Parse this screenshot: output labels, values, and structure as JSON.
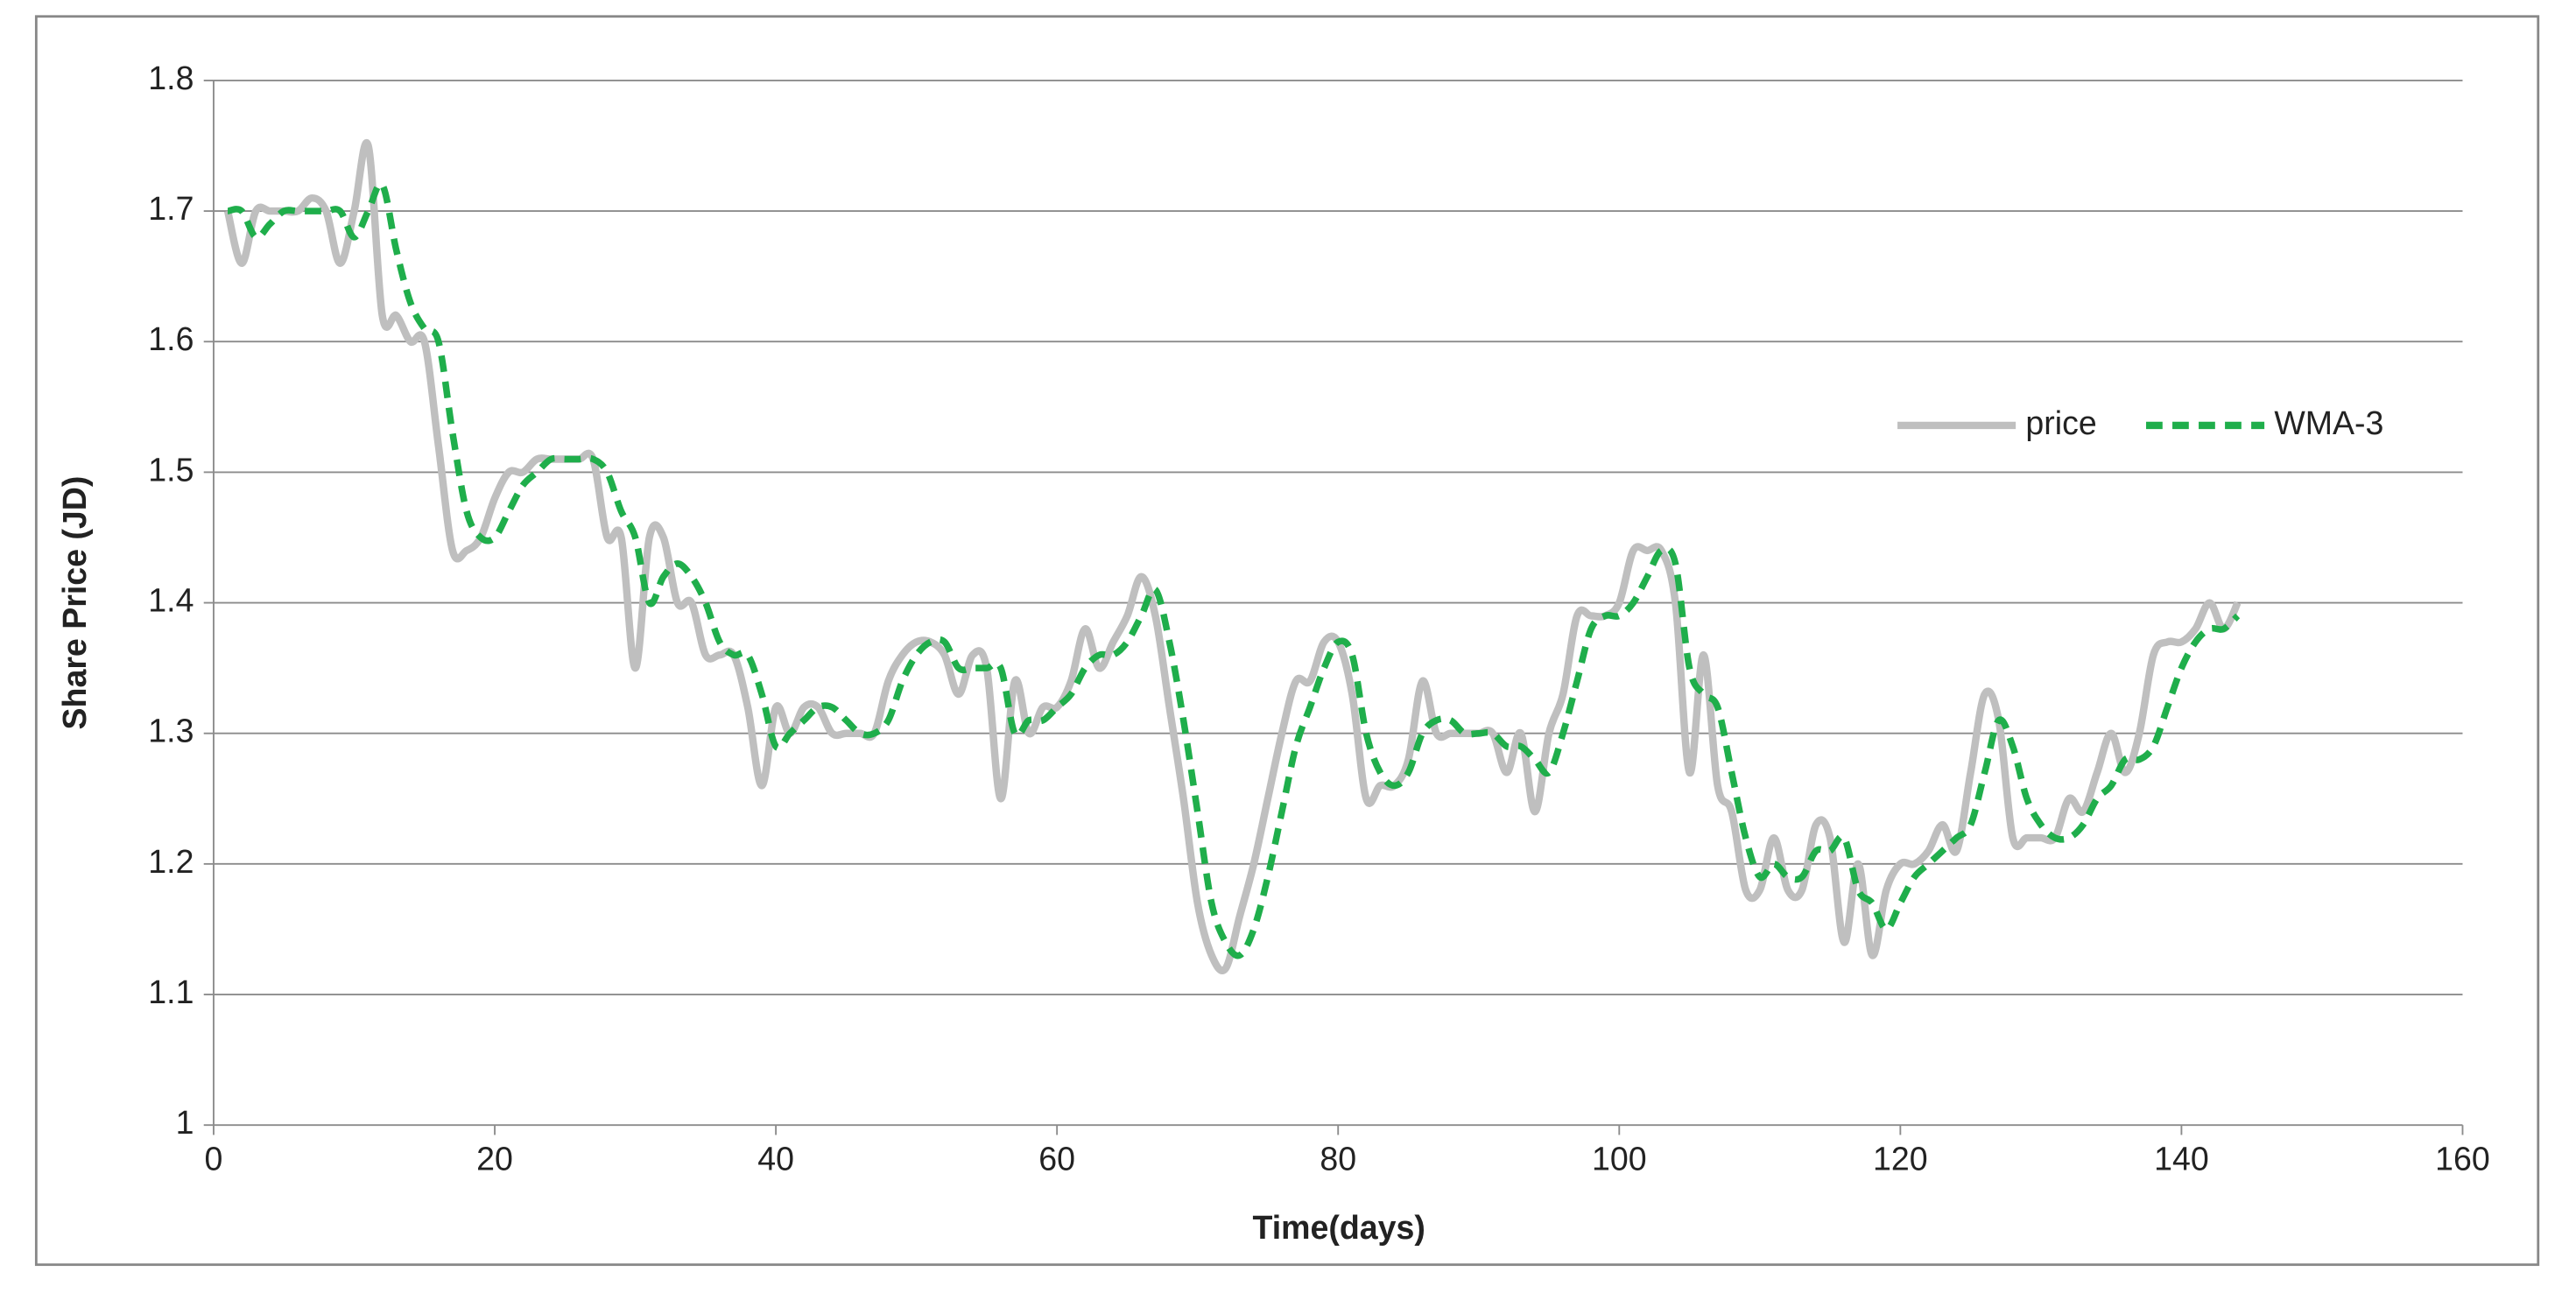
{
  "chart_data": {
    "type": "line",
    "xlabel": "Time(days)",
    "ylabel": "Share Price (JD)",
    "x": [
      1,
      2,
      3,
      4,
      5,
      6,
      7,
      8,
      9,
      10,
      11,
      12,
      13,
      14,
      15,
      16,
      17,
      18,
      19,
      20,
      21,
      22,
      23,
      24,
      25,
      26,
      27,
      28,
      29,
      30,
      31,
      32,
      33,
      34,
      35,
      36,
      37,
      38,
      39,
      40,
      41,
      42,
      43,
      44,
      45,
      46,
      47,
      48,
      49,
      50,
      51,
      52,
      53,
      54,
      55,
      56,
      57,
      58,
      59,
      60,
      61,
      62,
      63,
      64,
      65,
      66,
      67,
      68,
      69,
      70,
      71,
      72,
      73,
      74,
      75,
      76,
      77,
      78,
      79,
      80,
      81,
      82,
      83,
      84,
      85,
      86,
      87,
      88,
      89,
      90,
      91,
      92,
      93,
      94,
      95,
      96,
      97,
      98,
      99,
      100,
      101,
      102,
      103,
      104,
      105,
      106,
      107,
      108,
      109,
      110,
      111,
      112,
      113,
      114,
      115,
      116,
      117,
      118,
      119,
      120,
      121,
      122,
      123,
      124,
      125,
      126,
      127,
      128,
      129,
      130,
      131,
      132,
      133,
      134,
      135,
      136,
      137,
      138,
      139,
      140,
      141,
      142,
      143,
      144
    ],
    "series": [
      {
        "name": "price",
        "color": "#bfbfbf",
        "dashed": false,
        "values": [
          1.7,
          1.66,
          1.7,
          1.7,
          1.7,
          1.7,
          1.71,
          1.7,
          1.66,
          1.7,
          1.75,
          1.62,
          1.62,
          1.6,
          1.6,
          1.52,
          1.44,
          1.44,
          1.45,
          1.48,
          1.5,
          1.5,
          1.51,
          1.51,
          1.51,
          1.51,
          1.51,
          1.45,
          1.45,
          1.35,
          1.45,
          1.45,
          1.4,
          1.4,
          1.36,
          1.36,
          1.36,
          1.32,
          1.26,
          1.32,
          1.3,
          1.32,
          1.32,
          1.3,
          1.3,
          1.3,
          1.3,
          1.34,
          1.36,
          1.37,
          1.37,
          1.36,
          1.33,
          1.36,
          1.35,
          1.25,
          1.34,
          1.3,
          1.32,
          1.32,
          1.34,
          1.38,
          1.35,
          1.37,
          1.39,
          1.42,
          1.39,
          1.32,
          1.25,
          1.17,
          1.13,
          1.12,
          1.16,
          1.2,
          1.25,
          1.3,
          1.34,
          1.34,
          1.37,
          1.37,
          1.33,
          1.25,
          1.26,
          1.26,
          1.28,
          1.34,
          1.3,
          1.3,
          1.3,
          1.3,
          1.3,
          1.27,
          1.3,
          1.24,
          1.3,
          1.33,
          1.39,
          1.39,
          1.39,
          1.4,
          1.44,
          1.44,
          1.44,
          1.4,
          1.27,
          1.36,
          1.26,
          1.24,
          1.18,
          1.18,
          1.22,
          1.18,
          1.18,
          1.23,
          1.22,
          1.14,
          1.2,
          1.13,
          1.18,
          1.2,
          1.2,
          1.21,
          1.23,
          1.21,
          1.27,
          1.33,
          1.31,
          1.22,
          1.22,
          1.22,
          1.22,
          1.25,
          1.24,
          1.27,
          1.3,
          1.27,
          1.3,
          1.36,
          1.37,
          1.37,
          1.38,
          1.4,
          1.38,
          1.4
        ]
      },
      {
        "name": "WMA-3",
        "color": "#1fae4b",
        "dashed": true,
        "values": [
          1.7,
          1.7,
          1.68,
          1.69,
          1.7,
          1.7,
          1.7,
          1.7,
          1.7,
          1.68,
          1.7,
          1.72,
          1.67,
          1.63,
          1.61,
          1.6,
          1.53,
          1.47,
          1.45,
          1.45,
          1.47,
          1.49,
          1.5,
          1.51,
          1.51,
          1.51,
          1.51,
          1.5,
          1.47,
          1.45,
          1.4,
          1.42,
          1.43,
          1.42,
          1.4,
          1.37,
          1.36,
          1.36,
          1.33,
          1.29,
          1.3,
          1.31,
          1.32,
          1.32,
          1.31,
          1.3,
          1.3,
          1.31,
          1.34,
          1.36,
          1.37,
          1.37,
          1.35,
          1.35,
          1.35,
          1.35,
          1.3,
          1.31,
          1.31,
          1.32,
          1.33,
          1.35,
          1.36,
          1.36,
          1.37,
          1.39,
          1.41,
          1.37,
          1.31,
          1.24,
          1.17,
          1.14,
          1.13,
          1.15,
          1.19,
          1.24,
          1.29,
          1.32,
          1.35,
          1.37,
          1.36,
          1.3,
          1.27,
          1.26,
          1.27,
          1.3,
          1.31,
          1.31,
          1.3,
          1.3,
          1.3,
          1.29,
          1.29,
          1.28,
          1.27,
          1.3,
          1.34,
          1.38,
          1.39,
          1.39,
          1.4,
          1.42,
          1.44,
          1.43,
          1.35,
          1.33,
          1.32,
          1.27,
          1.22,
          1.19,
          1.2,
          1.19,
          1.19,
          1.21,
          1.21,
          1.22,
          1.18,
          1.17,
          1.15,
          1.17,
          1.19,
          1.2,
          1.21,
          1.22,
          1.23,
          1.27,
          1.31,
          1.29,
          1.25,
          1.23,
          1.22,
          1.22,
          1.23,
          1.25,
          1.26,
          1.28,
          1.28,
          1.29,
          1.32,
          1.35,
          1.37,
          1.38,
          1.38,
          1.39
        ]
      }
    ],
    "xlim": [
      0,
      160
    ],
    "xticks": [
      0,
      20,
      40,
      60,
      80,
      100,
      120,
      140,
      160
    ],
    "ylim": [
      1,
      1.8
    ],
    "yticks": [
      1,
      1.1,
      1.2,
      1.3,
      1.4,
      1.5,
      1.6,
      1.7,
      1.8
    ],
    "grid": true,
    "legend": "right"
  }
}
